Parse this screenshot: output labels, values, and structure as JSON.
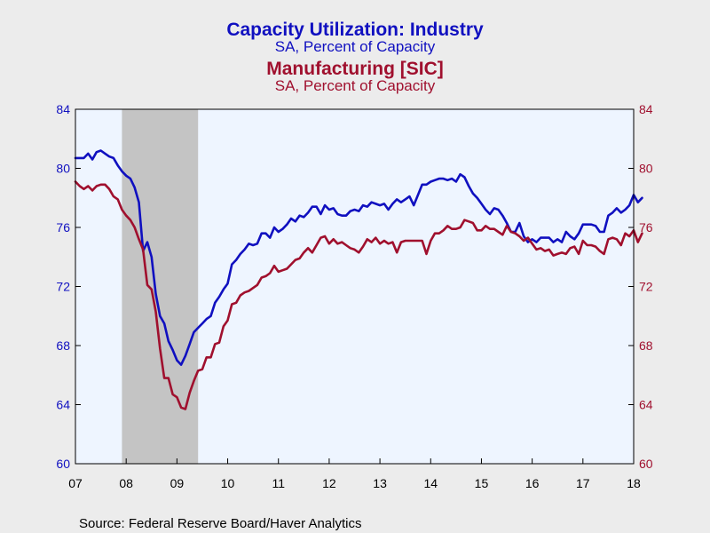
{
  "chart_data": {
    "type": "line",
    "titles": [
      {
        "title": "Capacity Utilization: Industry",
        "subtitle": "SA, Percent of Capacity",
        "color": "#1010c0"
      },
      {
        "title": "Manufacturing [SIC]",
        "subtitle": "SA, Percent of Capacity",
        "color": "#a0102e"
      }
    ],
    "source": "Source:  Federal Reserve Board/Haver Analytics",
    "x_axis": {
      "ticks": [
        "07",
        "08",
        "09",
        "10",
        "11",
        "12",
        "13",
        "14",
        "15",
        "16",
        "17",
        "18"
      ],
      "range": [
        "2007-01",
        "2018-01"
      ]
    },
    "y_left": {
      "ticks": [
        "60",
        "64",
        "68",
        "72",
        "76",
        "80",
        "84"
      ],
      "range": [
        60,
        84
      ],
      "color": "#1010c0"
    },
    "y_right": {
      "ticks": [
        "60",
        "64",
        "68",
        "72",
        "76",
        "80",
        "84"
      ],
      "range": [
        60,
        84
      ],
      "color": "#a0102e"
    },
    "recession": {
      "start": "2007-12",
      "end": "2009-06",
      "color": "#c4c4c4"
    },
    "plot_background": "#eef5ff",
    "grid": false,
    "series": [
      {
        "name": "Capacity Utilization: Industry",
        "color": "#1010c0",
        "axis": "left",
        "points": [
          [
            "2007-01",
            80.7
          ],
          [
            "2007-03",
            80.7
          ],
          [
            "2007-04",
            81.0
          ],
          [
            "2007-05",
            80.6
          ],
          [
            "2007-06",
            81.1
          ],
          [
            "2007-07",
            81.2
          ],
          [
            "2007-08",
            81.0
          ],
          [
            "2007-09",
            80.8
          ],
          [
            "2007-10",
            80.7
          ],
          [
            "2007-11",
            80.2
          ],
          [
            "2007-12",
            79.8
          ],
          [
            "2008-01",
            79.5
          ],
          [
            "2008-02",
            79.3
          ],
          [
            "2008-03",
            78.7
          ],
          [
            "2008-04",
            77.7
          ],
          [
            "2008-05",
            74.4
          ],
          [
            "2008-06",
            75.0
          ],
          [
            "2008-07",
            74.0
          ],
          [
            "2008-08",
            71.5
          ],
          [
            "2008-09",
            70.0
          ],
          [
            "2008-10",
            69.5
          ],
          [
            "2008-11",
            68.3
          ],
          [
            "2008-12",
            67.7
          ],
          [
            "2009-01",
            67.0
          ],
          [
            "2009-02",
            66.7
          ],
          [
            "2009-03",
            67.3
          ],
          [
            "2009-04",
            68.1
          ],
          [
            "2009-05",
            68.9
          ],
          [
            "2009-06",
            69.2
          ],
          [
            "2009-07",
            69.5
          ],
          [
            "2009-08",
            69.8
          ],
          [
            "2009-09",
            70.0
          ],
          [
            "2009-10",
            70.9
          ],
          [
            "2009-11",
            71.3
          ],
          [
            "2009-12",
            71.8
          ],
          [
            "2010-01",
            72.2
          ],
          [
            "2010-02",
            73.5
          ],
          [
            "2010-03",
            73.8
          ],
          [
            "2010-04",
            74.2
          ],
          [
            "2010-05",
            74.5
          ],
          [
            "2010-06",
            74.9
          ],
          [
            "2010-07",
            74.8
          ],
          [
            "2010-08",
            74.9
          ],
          [
            "2010-09",
            75.6
          ],
          [
            "2010-10",
            75.6
          ],
          [
            "2010-11",
            75.3
          ],
          [
            "2010-12",
            76.0
          ],
          [
            "2011-01",
            75.7
          ],
          [
            "2011-02",
            75.9
          ],
          [
            "2011-03",
            76.2
          ],
          [
            "2011-04",
            76.6
          ],
          [
            "2011-05",
            76.4
          ],
          [
            "2011-06",
            76.8
          ],
          [
            "2011-07",
            76.7
          ],
          [
            "2011-08",
            77.0
          ],
          [
            "2011-09",
            77.4
          ],
          [
            "2011-10",
            77.4
          ],
          [
            "2011-11",
            76.9
          ],
          [
            "2011-12",
            77.5
          ],
          [
            "2012-01",
            77.2
          ],
          [
            "2012-02",
            77.3
          ],
          [
            "2012-03",
            76.9
          ],
          [
            "2012-04",
            76.8
          ],
          [
            "2012-05",
            76.8
          ],
          [
            "2012-06",
            77.1
          ],
          [
            "2012-07",
            77.2
          ],
          [
            "2012-08",
            77.1
          ],
          [
            "2012-09",
            77.5
          ],
          [
            "2012-10",
            77.4
          ],
          [
            "2012-11",
            77.7
          ],
          [
            "2012-12",
            77.6
          ],
          [
            "2013-01",
            77.5
          ],
          [
            "2013-02",
            77.6
          ],
          [
            "2013-03",
            77.2
          ],
          [
            "2013-04",
            77.6
          ],
          [
            "2013-05",
            77.9
          ],
          [
            "2013-06",
            77.7
          ],
          [
            "2013-07",
            77.9
          ],
          [
            "2013-08",
            78.1
          ],
          [
            "2013-09",
            77.5
          ],
          [
            "2013-10",
            78.2
          ],
          [
            "2013-11",
            78.9
          ],
          [
            "2013-12",
            78.9
          ],
          [
            "2014-01",
            79.1
          ],
          [
            "2014-02",
            79.2
          ],
          [
            "2014-03",
            79.3
          ],
          [
            "2014-04",
            79.3
          ],
          [
            "2014-05",
            79.2
          ],
          [
            "2014-06",
            79.3
          ],
          [
            "2014-07",
            79.1
          ],
          [
            "2014-08",
            79.6
          ],
          [
            "2014-09",
            79.4
          ],
          [
            "2014-10",
            78.8
          ],
          [
            "2014-11",
            78.3
          ],
          [
            "2014-12",
            78.0
          ],
          [
            "2015-01",
            77.6
          ],
          [
            "2015-02",
            77.2
          ],
          [
            "2015-03",
            76.9
          ],
          [
            "2015-04",
            77.3
          ],
          [
            "2015-05",
            77.2
          ],
          [
            "2015-06",
            76.8
          ],
          [
            "2015-07",
            76.3
          ],
          [
            "2015-08",
            75.7
          ],
          [
            "2015-09",
            75.7
          ],
          [
            "2015-10",
            76.3
          ],
          [
            "2015-11",
            75.4
          ],
          [
            "2015-12",
            75.0
          ],
          [
            "2016-01",
            75.2
          ],
          [
            "2016-02",
            75.0
          ],
          [
            "2016-03",
            75.3
          ],
          [
            "2016-04",
            75.3
          ],
          [
            "2016-05",
            75.3
          ],
          [
            "2016-06",
            75.0
          ],
          [
            "2016-07",
            75.2
          ],
          [
            "2016-08",
            75.0
          ],
          [
            "2016-09",
            75.7
          ],
          [
            "2016-10",
            75.4
          ],
          [
            "2016-11",
            75.2
          ],
          [
            "2016-12",
            75.6
          ],
          [
            "2017-01",
            76.2
          ],
          [
            "2017-02",
            76.2
          ],
          [
            "2017-03",
            76.2
          ],
          [
            "2017-04",
            76.1
          ],
          [
            "2017-05",
            75.7
          ],
          [
            "2017-06",
            75.7
          ],
          [
            "2017-07",
            76.8
          ],
          [
            "2017-08",
            77.0
          ],
          [
            "2017-09",
            77.3
          ],
          [
            "2017-10",
            77.0
          ],
          [
            "2017-11",
            77.2
          ],
          [
            "2017-12",
            77.5
          ],
          [
            "2018-01",
            78.2
          ],
          [
            "2018-02",
            77.7
          ],
          [
            "2018-03",
            78.0
          ]
        ]
      },
      {
        "name": "Manufacturing [SIC]",
        "color": "#a0102e",
        "axis": "right",
        "points": [
          [
            "2007-01",
            79.1
          ],
          [
            "2007-02",
            78.8
          ],
          [
            "2007-03",
            78.6
          ],
          [
            "2007-04",
            78.8
          ],
          [
            "2007-05",
            78.5
          ],
          [
            "2007-06",
            78.8
          ],
          [
            "2007-07",
            78.9
          ],
          [
            "2007-08",
            78.9
          ],
          [
            "2007-09",
            78.6
          ],
          [
            "2007-10",
            78.1
          ],
          [
            "2007-11",
            77.9
          ],
          [
            "2007-12",
            77.2
          ],
          [
            "2008-01",
            76.8
          ],
          [
            "2008-02",
            76.5
          ],
          [
            "2008-03",
            76.0
          ],
          [
            "2008-04",
            75.2
          ],
          [
            "2008-05",
            74.5
          ],
          [
            "2008-06",
            72.1
          ],
          [
            "2008-07",
            71.8
          ],
          [
            "2008-08",
            70.3
          ],
          [
            "2008-09",
            67.8
          ],
          [
            "2008-10",
            65.8
          ],
          [
            "2008-11",
            65.8
          ],
          [
            "2008-12",
            64.7
          ],
          [
            "2009-01",
            64.5
          ],
          [
            "2009-02",
            63.8
          ],
          [
            "2009-03",
            63.7
          ],
          [
            "2009-04",
            64.8
          ],
          [
            "2009-05",
            65.6
          ],
          [
            "2009-06",
            66.3
          ],
          [
            "2009-07",
            66.4
          ],
          [
            "2009-08",
            67.2
          ],
          [
            "2009-09",
            67.2
          ],
          [
            "2009-10",
            68.1
          ],
          [
            "2009-11",
            68.2
          ],
          [
            "2009-12",
            69.3
          ],
          [
            "2010-01",
            69.7
          ],
          [
            "2010-02",
            70.8
          ],
          [
            "2010-03",
            70.9
          ],
          [
            "2010-04",
            71.4
          ],
          [
            "2010-05",
            71.6
          ],
          [
            "2010-06",
            71.7
          ],
          [
            "2010-07",
            71.9
          ],
          [
            "2010-08",
            72.1
          ],
          [
            "2010-09",
            72.6
          ],
          [
            "2010-10",
            72.7
          ],
          [
            "2010-11",
            72.9
          ],
          [
            "2010-12",
            73.4
          ],
          [
            "2011-01",
            73.0
          ],
          [
            "2011-02",
            73.1
          ],
          [
            "2011-03",
            73.2
          ],
          [
            "2011-04",
            73.5
          ],
          [
            "2011-05",
            73.8
          ],
          [
            "2011-06",
            73.9
          ],
          [
            "2011-07",
            74.3
          ],
          [
            "2011-08",
            74.6
          ],
          [
            "2011-09",
            74.3
          ],
          [
            "2011-10",
            74.8
          ],
          [
            "2011-11",
            75.3
          ],
          [
            "2011-12",
            75.4
          ],
          [
            "2012-01",
            74.9
          ],
          [
            "2012-02",
            75.2
          ],
          [
            "2012-03",
            74.9
          ],
          [
            "2012-04",
            75.0
          ],
          [
            "2012-05",
            74.8
          ],
          [
            "2012-06",
            74.6
          ],
          [
            "2012-07",
            74.5
          ],
          [
            "2012-08",
            74.3
          ],
          [
            "2012-09",
            74.7
          ],
          [
            "2012-10",
            75.2
          ],
          [
            "2012-11",
            75.0
          ],
          [
            "2012-12",
            75.3
          ],
          [
            "2013-01",
            74.9
          ],
          [
            "2013-02",
            75.1
          ],
          [
            "2013-03",
            74.9
          ],
          [
            "2013-04",
            75.0
          ],
          [
            "2013-05",
            74.3
          ],
          [
            "2013-06",
            75.0
          ],
          [
            "2013-07",
            75.1
          ],
          [
            "2013-08",
            75.1
          ],
          [
            "2013-09",
            75.1
          ],
          [
            "2013-10",
            75.1
          ],
          [
            "2013-11",
            75.1
          ],
          [
            "2013-12",
            74.2
          ],
          [
            "2014-01",
            75.1
          ],
          [
            "2014-02",
            75.6
          ],
          [
            "2014-03",
            75.6
          ],
          [
            "2014-04",
            75.8
          ],
          [
            "2014-05",
            76.1
          ],
          [
            "2014-06",
            75.9
          ],
          [
            "2014-07",
            75.9
          ],
          [
            "2014-08",
            76.0
          ],
          [
            "2014-09",
            76.5
          ],
          [
            "2014-10",
            76.4
          ],
          [
            "2014-11",
            76.3
          ],
          [
            "2014-12",
            75.8
          ],
          [
            "2015-01",
            75.8
          ],
          [
            "2015-02",
            76.1
          ],
          [
            "2015-03",
            75.9
          ],
          [
            "2015-04",
            75.9
          ],
          [
            "2015-05",
            75.7
          ],
          [
            "2015-06",
            75.5
          ],
          [
            "2015-07",
            76.1
          ],
          [
            "2015-08",
            75.7
          ],
          [
            "2015-09",
            75.6
          ],
          [
            "2015-10",
            75.4
          ],
          [
            "2015-11",
            75.1
          ],
          [
            "2015-12",
            75.3
          ],
          [
            "2016-01",
            74.9
          ],
          [
            "2016-02",
            74.5
          ],
          [
            "2016-03",
            74.6
          ],
          [
            "2016-04",
            74.4
          ],
          [
            "2016-05",
            74.5
          ],
          [
            "2016-06",
            74.1
          ],
          [
            "2016-07",
            74.2
          ],
          [
            "2016-08",
            74.3
          ],
          [
            "2016-09",
            74.2
          ],
          [
            "2016-10",
            74.6
          ],
          [
            "2016-11",
            74.7
          ],
          [
            "2016-12",
            74.2
          ],
          [
            "2017-01",
            75.1
          ],
          [
            "2017-02",
            74.8
          ],
          [
            "2017-03",
            74.8
          ],
          [
            "2017-04",
            74.7
          ],
          [
            "2017-05",
            74.4
          ],
          [
            "2017-06",
            74.2
          ],
          [
            "2017-07",
            75.2
          ],
          [
            "2017-08",
            75.3
          ],
          [
            "2017-09",
            75.2
          ],
          [
            "2017-10",
            74.8
          ],
          [
            "2017-11",
            75.6
          ],
          [
            "2017-12",
            75.4
          ],
          [
            "2018-01",
            75.8
          ],
          [
            "2018-02",
            75.0
          ],
          [
            "2018-03",
            75.6
          ]
        ]
      }
    ]
  }
}
